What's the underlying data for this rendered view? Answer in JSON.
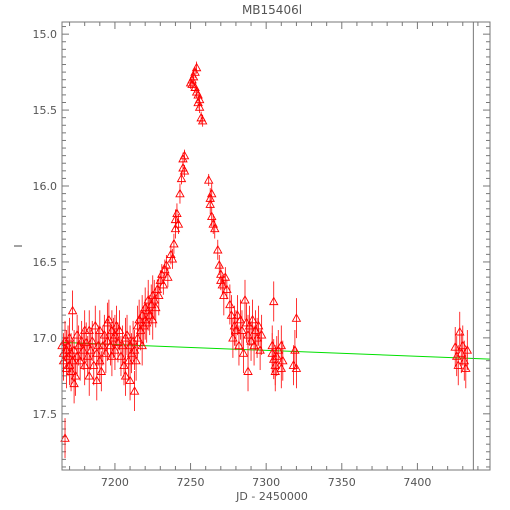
{
  "chart_data": {
    "type": "scatter",
    "title": "MB15406l",
    "xlabel": "JD - 2450000",
    "ylabel": "I",
    "xlim": [
      7165,
      7448
    ],
    "ylim": [
      17.87,
      14.92
    ],
    "y_inverted": true,
    "x_ticks": [
      7200,
      7250,
      7300,
      7350,
      7400
    ],
    "y_ticks": [
      15.0,
      15.5,
      16.0,
      16.5,
      17.0,
      17.5
    ],
    "x_tick_labels": [
      "7200",
      "7250",
      "7300",
      "7350",
      "7400"
    ],
    "y_tick_labels": [
      "15.0",
      "15.5",
      "16.0",
      "16.5",
      "17.0",
      "17.5"
    ],
    "marker": "triangle-up-open",
    "colors": {
      "points": "#ff0000",
      "trend": "#00e000",
      "axes": "#777777"
    },
    "grid": false,
    "trend_line": {
      "x": [
        7165,
        7448
      ],
      "y": [
        17.03,
        17.14
      ]
    },
    "vertical_line_x": 7437,
    "series": [
      {
        "points": [
          [
            7165,
            17.05
          ],
          [
            7166,
            17.15
          ],
          [
            7166,
            17.1
          ],
          [
            7167,
            17.66
          ],
          [
            7167,
            17.02
          ],
          [
            7168,
            17.2
          ],
          [
            7168,
            17.08
          ],
          [
            7169,
            17.12
          ],
          [
            7169,
            17.05
          ],
          [
            7170,
            17.18
          ],
          [
            7170,
            17.0
          ],
          [
            7171,
            17.1
          ],
          [
            7171,
            17.22
          ],
          [
            7172,
            16.82
          ],
          [
            7172,
            17.15
          ],
          [
            7173,
            17.3
          ],
          [
            7173,
            17.08
          ],
          [
            7174,
            17.25
          ],
          [
            7175,
            17.12
          ],
          [
            7175,
            16.98
          ],
          [
            7176,
            17.05
          ],
          [
            7177,
            17.15
          ],
          [
            7178,
            17.02
          ],
          [
            7179,
            17.08
          ],
          [
            7180,
            16.95
          ],
          [
            7180,
            17.18
          ],
          [
            7181,
            17.03
          ],
          [
            7182,
            17.12
          ],
          [
            7183,
            17.25
          ],
          [
            7183,
            16.95
          ],
          [
            7184,
            17.08
          ],
          [
            7185,
            17.02
          ],
          [
            7186,
            17.18
          ],
          [
            7187,
            16.92
          ],
          [
            7188,
            17.28
          ],
          [
            7188,
            17.1
          ],
          [
            7189,
            17.05
          ],
          [
            7190,
            17.15
          ],
          [
            7190,
            16.95
          ],
          [
            7191,
            17.22
          ],
          [
            7192,
            17.05
          ],
          [
            7193,
            16.98
          ],
          [
            7194,
            17.1
          ],
          [
            7195,
            17.02
          ],
          [
            7195,
            16.9
          ],
          [
            7196,
            16.88
          ],
          [
            7197,
            17.05
          ],
          [
            7198,
            16.95
          ],
          [
            7198,
            17.12
          ],
          [
            7199,
            17.0
          ],
          [
            7200,
            16.98
          ],
          [
            7200,
            17.08
          ],
          [
            7201,
            16.92
          ],
          [
            7202,
            17.03
          ],
          [
            7203,
            16.95
          ],
          [
            7204,
            17.12
          ],
          [
            7205,
            17.05
          ],
          [
            7206,
            17.18
          ],
          [
            7207,
            17.0
          ],
          [
            7207,
            17.25
          ],
          [
            7208,
            16.98
          ],
          [
            7209,
            17.15
          ],
          [
            7210,
            17.05
          ],
          [
            7210,
            17.28
          ],
          [
            7211,
            17.1
          ],
          [
            7212,
            17.02
          ],
          [
            7213,
            17.35
          ],
          [
            7213,
            17.08
          ],
          [
            7214,
            17.15
          ],
          [
            7215,
            17.0
          ],
          [
            7215,
            16.92
          ],
          [
            7216,
            16.88
          ],
          [
            7217,
            16.95
          ],
          [
            7218,
            16.85
          ],
          [
            7218,
            17.05
          ],
          [
            7219,
            16.92
          ],
          [
            7220,
            16.88
          ],
          [
            7220,
            16.8
          ],
          [
            7221,
            16.9
          ],
          [
            7222,
            16.82
          ],
          [
            7222,
            16.75
          ],
          [
            7223,
            16.85
          ],
          [
            7224,
            16.78
          ],
          [
            7225,
            16.72
          ],
          [
            7225,
            16.88
          ],
          [
            7226,
            16.75
          ],
          [
            7227,
            16.8
          ],
          [
            7228,
            16.68
          ],
          [
            7229,
            16.72
          ],
          [
            7230,
            16.62
          ],
          [
            7231,
            16.58
          ],
          [
            7232,
            16.65
          ],
          [
            7233,
            16.55
          ],
          [
            7234,
            16.52
          ],
          [
            7235,
            16.6
          ],
          [
            7237,
            16.45
          ],
          [
            7238,
            16.48
          ],
          [
            7239,
            16.38
          ],
          [
            7240,
            16.28
          ],
          [
            7240,
            16.22
          ],
          [
            7241,
            16.18
          ],
          [
            7242,
            16.25
          ],
          [
            7243,
            16.05
          ],
          [
            7244,
            15.95
          ],
          [
            7245,
            15.88
          ],
          [
            7245,
            15.82
          ],
          [
            7246,
            15.8
          ],
          [
            7246,
            15.9
          ],
          [
            7250,
            15.32
          ],
          [
            7251,
            15.33
          ],
          [
            7251,
            15.3
          ],
          [
            7252,
            15.28
          ],
          [
            7253,
            15.25
          ],
          [
            7253,
            15.35
          ],
          [
            7254,
            15.22
          ],
          [
            7254,
            15.38
          ],
          [
            7255,
            15.4
          ],
          [
            7255,
            15.45
          ],
          [
            7256,
            15.48
          ],
          [
            7256,
            15.43
          ],
          [
            7257,
            15.55
          ],
          [
            7258,
            15.57
          ],
          [
            7262,
            15.96
          ],
          [
            7263,
            16.08
          ],
          [
            7263,
            16.12
          ],
          [
            7264,
            16.05
          ],
          [
            7264,
            16.2
          ],
          [
            7265,
            16.25
          ],
          [
            7266,
            16.28
          ],
          [
            7268,
            16.42
          ],
          [
            7269,
            16.52
          ],
          [
            7270,
            16.58
          ],
          [
            7270,
            16.62
          ],
          [
            7271,
            16.65
          ],
          [
            7272,
            16.72
          ],
          [
            7273,
            16.6
          ],
          [
            7274,
            16.68
          ],
          [
            7276,
            16.78
          ],
          [
            7277,
            16.85
          ],
          [
            7278,
            17.0
          ],
          [
            7279,
            16.92
          ],
          [
            7280,
            16.95
          ],
          [
            7281,
            16.85
          ],
          [
            7282,
            17.05
          ],
          [
            7283,
            16.88
          ],
          [
            7284,
            16.95
          ],
          [
            7285,
            17.1
          ],
          [
            7286,
            16.75
          ],
          [
            7287,
            16.9
          ],
          [
            7288,
            16.98
          ],
          [
            7288,
            17.22
          ],
          [
            7289,
            16.92
          ],
          [
            7290,
            17.02
          ],
          [
            7291,
            16.88
          ],
          [
            7292,
            17.05
          ],
          [
            7293,
            16.95
          ],
          [
            7294,
            17.0
          ],
          [
            7295,
            16.92
          ],
          [
            7296,
            17.08
          ],
          [
            7297,
            16.98
          ],
          [
            7304,
            17.05
          ],
          [
            7304,
            17.1
          ],
          [
            7305,
            16.76
          ],
          [
            7305,
            17.14
          ],
          [
            7306,
            17.18
          ],
          [
            7306,
            17.22
          ],
          [
            7307,
            17.12
          ],
          [
            7308,
            17.08
          ],
          [
            7310,
            17.2
          ],
          [
            7310,
            17.05
          ],
          [
            7311,
            17.15
          ],
          [
            7318,
            17.18
          ],
          [
            7319,
            17.08
          ],
          [
            7320,
            16.87
          ],
          [
            7320,
            17.2
          ],
          [
            7425,
            17.06
          ],
          [
            7426,
            17.12
          ],
          [
            7427,
            17.18
          ],
          [
            7428,
            16.96
          ],
          [
            7429,
            17.1
          ],
          [
            7430,
            17.05
          ],
          [
            7431,
            17.15
          ],
          [
            7432,
            17.2
          ],
          [
            7433,
            17.08
          ]
        ]
      }
    ]
  }
}
